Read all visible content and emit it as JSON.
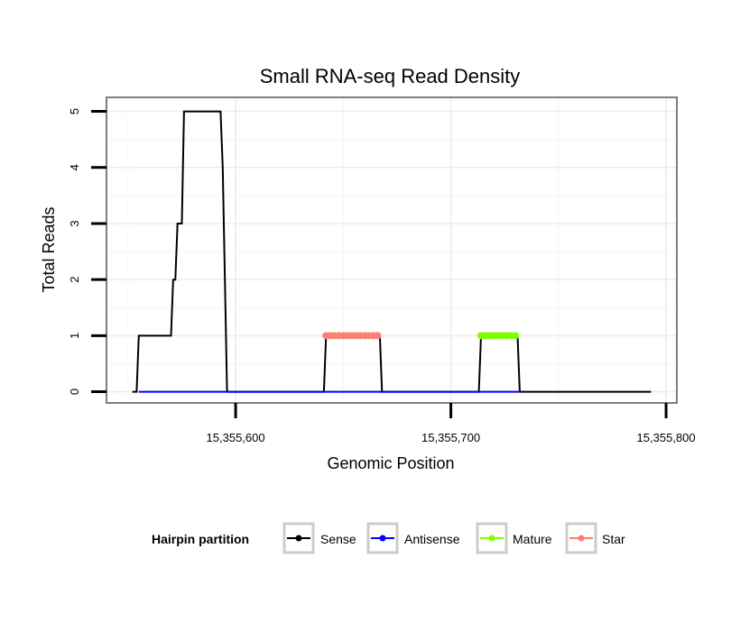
{
  "chart_data": {
    "type": "line",
    "title": "Small RNA-seq Read Density",
    "xlabel": "Genomic Position",
    "ylabel": "Total Reads",
    "xlim": [
      15355540,
      15355805
    ],
    "ylim": [
      -0.2,
      5.25
    ],
    "x_ticks": [
      15355600,
      15355700,
      15355800
    ],
    "x_tick_labels": [
      "15,355,600",
      "15,355,700",
      "15,355,800"
    ],
    "y_ticks": [
      0,
      1,
      2,
      3,
      4,
      5
    ],
    "y_tick_labels": [
      "0",
      "1",
      "2",
      "3",
      "4",
      "5"
    ],
    "grid": true,
    "legend": {
      "title": "Hairpin partition",
      "position": "bottom",
      "entries": [
        {
          "label": "Sense",
          "color": "#000000"
        },
        {
          "label": "Antisense",
          "color": "#0000ff"
        },
        {
          "label": "Mature",
          "color": "#7cff00"
        },
        {
          "label": "Star",
          "color": "#fa8072"
        }
      ]
    },
    "series": [
      {
        "name": "Sense",
        "color": "#000000",
        "points": [
          [
            15355552,
            0
          ],
          [
            15355554,
            0
          ],
          [
            15355555,
            1
          ],
          [
            15355570,
            1
          ],
          [
            15355571,
            2
          ],
          [
            15355572,
            2
          ],
          [
            15355573,
            3
          ],
          [
            15355575,
            3
          ],
          [
            15355576,
            5
          ],
          [
            15355593,
            5
          ],
          [
            15355594,
            4
          ],
          [
            15355596,
            0
          ],
          [
            15355641,
            0
          ],
          [
            15355642,
            1
          ],
          [
            15355667,
            1
          ],
          [
            15355668,
            0
          ],
          [
            15355713,
            0
          ],
          [
            15355714,
            1
          ],
          [
            15355731,
            1
          ],
          [
            15355732,
            0
          ],
          [
            15355793,
            0
          ]
        ]
      },
      {
        "name": "Antisense",
        "color": "#0000ff",
        "points": [
          [
            15355555,
            0
          ],
          [
            15355596,
            0
          ],
          [
            15355642,
            0
          ],
          [
            15355668,
            0
          ],
          [
            15355714,
            0
          ],
          [
            15355732,
            0
          ]
        ]
      },
      {
        "name": "Star",
        "color": "#fa8072",
        "points": [
          [
            15355642,
            1
          ],
          [
            15355644,
            1
          ],
          [
            15355646,
            1
          ],
          [
            15355648,
            1
          ],
          [
            15355650,
            1
          ],
          [
            15355652,
            1
          ],
          [
            15355654,
            1
          ],
          [
            15355656,
            1
          ],
          [
            15355658,
            1
          ],
          [
            15355660,
            1
          ],
          [
            15355662,
            1
          ],
          [
            15355664,
            1
          ],
          [
            15355666,
            1
          ]
        ]
      },
      {
        "name": "Mature",
        "color": "#7cff00",
        "points": [
          [
            15355714,
            1
          ],
          [
            15355716,
            1
          ],
          [
            15355718,
            1
          ],
          [
            15355720,
            1
          ],
          [
            15355722,
            1
          ],
          [
            15355724,
            1
          ],
          [
            15355726,
            1
          ],
          [
            15355728,
            1
          ],
          [
            15355730,
            1
          ]
        ]
      }
    ]
  }
}
